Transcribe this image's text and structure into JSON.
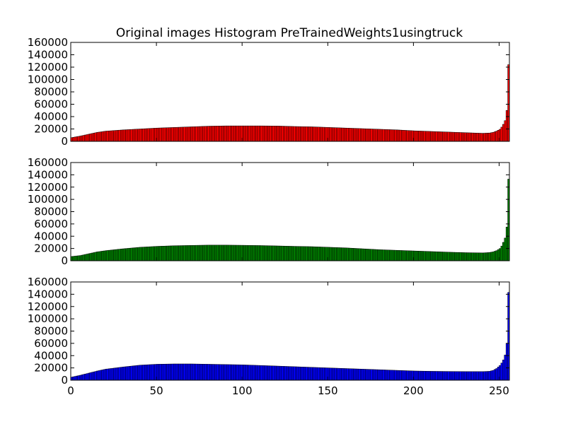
{
  "chart_data": {
    "type": "bar",
    "title": "Original images Histogram PreTrainedWeights1usingtruck",
    "xlabel": "",
    "ylabel": "",
    "xlim": [
      0,
      256
    ],
    "ylim": [
      0,
      160000
    ],
    "grid": false,
    "y_ticks": [
      "0",
      "20000",
      "40000",
      "60000",
      "80000",
      "100000",
      "120000",
      "140000",
      "160000"
    ],
    "x_ticks": [
      "0",
      "50",
      "100",
      "150",
      "200",
      "250"
    ],
    "bins": 256,
    "panels": [
      {
        "channel": "red",
        "color": "#ff0000",
        "anchors": [
          [
            0,
            6000
          ],
          [
            5,
            8500
          ],
          [
            10,
            11500
          ],
          [
            15,
            14500
          ],
          [
            20,
            16500
          ],
          [
            30,
            18500
          ],
          [
            40,
            20000
          ],
          [
            50,
            21500
          ],
          [
            60,
            22500
          ],
          [
            70,
            23500
          ],
          [
            80,
            24500
          ],
          [
            90,
            25000
          ],
          [
            100,
            25000
          ],
          [
            110,
            25000
          ],
          [
            120,
            24800
          ],
          [
            130,
            24000
          ],
          [
            140,
            23500
          ],
          [
            150,
            22500
          ],
          [
            160,
            21500
          ],
          [
            170,
            20500
          ],
          [
            180,
            19500
          ],
          [
            190,
            18500
          ],
          [
            200,
            17000
          ],
          [
            210,
            16000
          ],
          [
            220,
            15000
          ],
          [
            230,
            14000
          ],
          [
            240,
            13000
          ],
          [
            244,
            13500
          ],
          [
            246,
            14500
          ],
          [
            248,
            16500
          ],
          [
            250,
            19500
          ],
          [
            251,
            23000
          ],
          [
            252,
            27500
          ],
          [
            253,
            33500
          ],
          [
            254,
            50000
          ],
          [
            255,
            124000
          ]
        ]
      },
      {
        "channel": "green",
        "color": "#008000",
        "anchors": [
          [
            0,
            7000
          ],
          [
            5,
            8500
          ],
          [
            10,
            11500
          ],
          [
            15,
            14500
          ],
          [
            20,
            16500
          ],
          [
            30,
            19500
          ],
          [
            40,
            22000
          ],
          [
            50,
            23500
          ],
          [
            60,
            24500
          ],
          [
            70,
            25000
          ],
          [
            80,
            25500
          ],
          [
            90,
            25500
          ],
          [
            100,
            25200
          ],
          [
            110,
            24800
          ],
          [
            120,
            24200
          ],
          [
            130,
            23500
          ],
          [
            140,
            23000
          ],
          [
            150,
            22000
          ],
          [
            160,
            21000
          ],
          [
            170,
            19500
          ],
          [
            180,
            18000
          ],
          [
            190,
            17000
          ],
          [
            200,
            16000
          ],
          [
            210,
            15000
          ],
          [
            220,
            14000
          ],
          [
            230,
            13200
          ],
          [
            240,
            12800
          ],
          [
            244,
            13500
          ],
          [
            246,
            14500
          ],
          [
            248,
            16500
          ],
          [
            250,
            20000
          ],
          [
            251,
            24000
          ],
          [
            252,
            30000
          ],
          [
            253,
            37000
          ],
          [
            254,
            55000
          ],
          [
            255,
            133000
          ]
        ]
      },
      {
        "channel": "blue",
        "color": "#0000ff",
        "anchors": [
          [
            0,
            5000
          ],
          [
            5,
            8000
          ],
          [
            10,
            11500
          ],
          [
            15,
            15000
          ],
          [
            20,
            18000
          ],
          [
            30,
            21500
          ],
          [
            40,
            24500
          ],
          [
            50,
            26000
          ],
          [
            60,
            26500
          ],
          [
            70,
            26500
          ],
          [
            80,
            26000
          ],
          [
            90,
            25500
          ],
          [
            100,
            25000
          ],
          [
            110,
            24000
          ],
          [
            120,
            23000
          ],
          [
            130,
            22000
          ],
          [
            140,
            21000
          ],
          [
            150,
            20000
          ],
          [
            160,
            19000
          ],
          [
            170,
            18000
          ],
          [
            180,
            17000
          ],
          [
            190,
            16000
          ],
          [
            200,
            15000
          ],
          [
            210,
            14500
          ],
          [
            220,
            14200
          ],
          [
            230,
            14000
          ],
          [
            240,
            14000
          ],
          [
            244,
            14500
          ],
          [
            246,
            16000
          ],
          [
            248,
            19000
          ],
          [
            250,
            24000
          ],
          [
            251,
            28000
          ],
          [
            252,
            33000
          ],
          [
            253,
            41000
          ],
          [
            254,
            60000
          ],
          [
            255,
            143000
          ]
        ]
      }
    ]
  }
}
